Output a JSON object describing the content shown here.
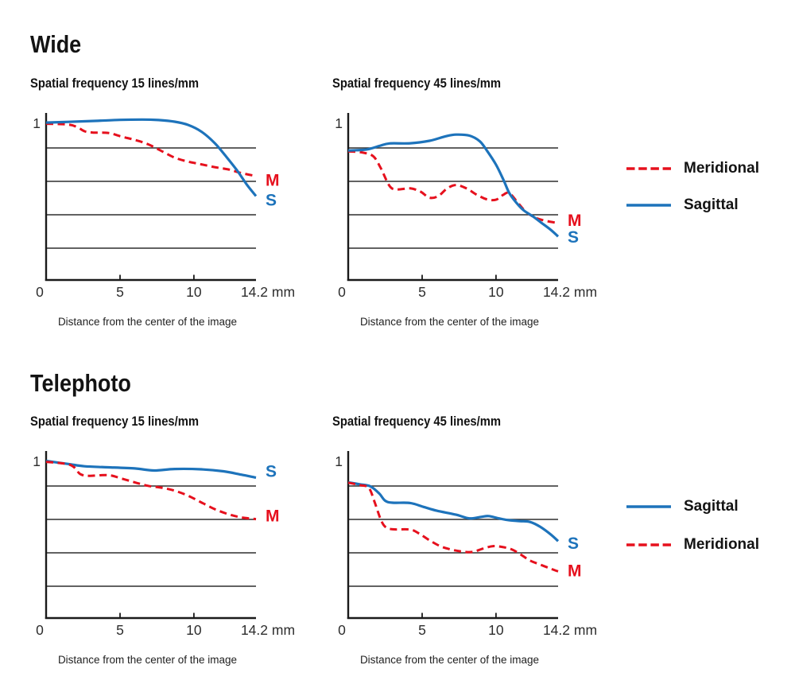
{
  "page_background": "#ffffff",
  "colors": {
    "sagittal_blue": "#1d73bb",
    "meridional_red": "#e6101d",
    "axis": "#1a1a1a",
    "gridline": "#2e2e2e",
    "tick_text": "#2d2d2d"
  },
  "sections": [
    {
      "title": "Wide",
      "legend": [
        {
          "label": "Meridional",
          "style": "dashed",
          "color": "#e6101d"
        },
        {
          "label": "Sagittal",
          "style": "solid",
          "color": "#1d73bb"
        }
      ]
    },
    {
      "title": "Telephoto",
      "legend": [
        {
          "label": "Sagittal",
          "style": "solid",
          "color": "#1d73bb"
        },
        {
          "label": "Meridional",
          "style": "dashed",
          "color": "#e6101d"
        }
      ]
    }
  ],
  "chart_data": [
    {
      "id": "wide-15",
      "type": "line",
      "title": "Spatial frequency 15 lines/mm",
      "xlabel": "Distance from the center of the image",
      "xlim": [
        0,
        14.2
      ],
      "ylim": [
        0,
        1
      ],
      "y_top_label": "1",
      "gridlines_y": [
        0.8,
        0.6,
        0.4,
        0.2
      ],
      "x_ticks": [
        {
          "value": 0,
          "label": "0",
          "mark": false
        },
        {
          "value": 5,
          "label": "5",
          "mark": true
        },
        {
          "value": 10,
          "label": "10",
          "mark": true
        },
        {
          "value": 14.2,
          "label": "14.2 mm",
          "mark": false
        }
      ],
      "series": [
        {
          "name": "Meridional",
          "end_label": "M",
          "style": "dashed",
          "color": "#e6101d",
          "end_label_at": 0.61,
          "points": [
            [
              0,
              0.945
            ],
            [
              1.5,
              0.94
            ],
            [
              2.1,
              0.925
            ],
            [
              2.6,
              0.9
            ],
            [
              3.2,
              0.892
            ],
            [
              4.2,
              0.89
            ],
            [
              5.1,
              0.868
            ],
            [
              6,
              0.848
            ],
            [
              6.9,
              0.822
            ],
            [
              7.8,
              0.782
            ],
            [
              8.7,
              0.742
            ],
            [
              9.6,
              0.718
            ],
            [
              10.5,
              0.702
            ],
            [
              11.4,
              0.685
            ],
            [
              12.3,
              0.672
            ],
            [
              13.2,
              0.65
            ],
            [
              14.2,
              0.632
            ]
          ]
        },
        {
          "name": "Sagittal",
          "end_label": "S",
          "style": "solid",
          "color": "#1d73bb",
          "end_label_at": 0.49,
          "points": [
            [
              0,
              0.952
            ],
            [
              1.5,
              0.956
            ],
            [
              3.3,
              0.962
            ],
            [
              5,
              0.968
            ],
            [
              6.5,
              0.97
            ],
            [
              7.6,
              0.967
            ],
            [
              8.7,
              0.957
            ],
            [
              9.6,
              0.938
            ],
            [
              10.5,
              0.898
            ],
            [
              11.4,
              0.83
            ],
            [
              12.1,
              0.757
            ],
            [
              12.9,
              0.668
            ],
            [
              13.6,
              0.578
            ],
            [
              14.2,
              0.512
            ]
          ]
        }
      ]
    },
    {
      "id": "wide-45",
      "type": "line",
      "title": "Spatial frequency 45 lines/mm",
      "xlabel": "Distance from the center of the image",
      "xlim": [
        0,
        14.2
      ],
      "ylim": [
        0,
        1
      ],
      "y_top_label": "1",
      "gridlines_y": [
        0.8,
        0.6,
        0.4,
        0.2
      ],
      "x_ticks": [
        {
          "value": 0,
          "label": "0",
          "mark": false
        },
        {
          "value": 5,
          "label": "5",
          "mark": true
        },
        {
          "value": 10,
          "label": "10",
          "mark": true
        },
        {
          "value": 14.2,
          "label": "14.2 mm",
          "mark": false
        }
      ],
      "series": [
        {
          "name": "Meridional",
          "end_label": "M",
          "style": "dashed",
          "color": "#e6101d",
          "end_label_at": 0.37,
          "points": [
            [
              0,
              0.78
            ],
            [
              1,
              0.772
            ],
            [
              1.7,
              0.75
            ],
            [
              2.2,
              0.68
            ],
            [
              2.8,
              0.572
            ],
            [
              3.3,
              0.552
            ],
            [
              4.2,
              0.558
            ],
            [
              4.9,
              0.538
            ],
            [
              5.5,
              0.502
            ],
            [
              6.1,
              0.512
            ],
            [
              6.7,
              0.558
            ],
            [
              7.3,
              0.578
            ],
            [
              8,
              0.558
            ],
            [
              8.7,
              0.52
            ],
            [
              9.4,
              0.492
            ],
            [
              10,
              0.49
            ],
            [
              10.5,
              0.52
            ],
            [
              10.9,
              0.53
            ],
            [
              11.5,
              0.47
            ],
            [
              12,
              0.42
            ],
            [
              12.6,
              0.385
            ],
            [
              13.3,
              0.365
            ],
            [
              14.2,
              0.35
            ]
          ]
        },
        {
          "name": "Sagittal",
          "end_label": "S",
          "style": "solid",
          "color": "#1d73bb",
          "end_label_at": 0.27,
          "points": [
            [
              0,
              0.785
            ],
            [
              1.2,
              0.79
            ],
            [
              2.1,
              0.812
            ],
            [
              2.8,
              0.827
            ],
            [
              4.2,
              0.828
            ],
            [
              5.5,
              0.843
            ],
            [
              6.6,
              0.87
            ],
            [
              7.3,
              0.88
            ],
            [
              8.2,
              0.874
            ],
            [
              8.9,
              0.84
            ],
            [
              9.4,
              0.782
            ],
            [
              10,
              0.7
            ],
            [
              10.5,
              0.61
            ],
            [
              10.9,
              0.53
            ],
            [
              11.4,
              0.47
            ],
            [
              11.9,
              0.425
            ],
            [
              12.5,
              0.39
            ],
            [
              13.1,
              0.35
            ],
            [
              13.7,
              0.31
            ],
            [
              14.2,
              0.27
            ]
          ]
        }
      ]
    },
    {
      "id": "telephoto-15",
      "type": "line",
      "title": "Spatial frequency 15 lines/mm",
      "xlabel": "Distance from the center of the image",
      "xlim": [
        0,
        14.2
      ],
      "ylim": [
        0,
        1
      ],
      "y_top_label": "1",
      "gridlines_y": [
        0.8,
        0.6,
        0.4,
        0.2
      ],
      "x_ticks": [
        {
          "value": 0,
          "label": "0",
          "mark": false
        },
        {
          "value": 5,
          "label": "5",
          "mark": true
        },
        {
          "value": 10,
          "label": "10",
          "mark": true
        },
        {
          "value": 14.2,
          "label": "14.2 mm",
          "mark": false
        }
      ],
      "series": [
        {
          "name": "Sagittal",
          "end_label": "S",
          "style": "solid",
          "color": "#1d73bb",
          "end_label_at": 0.89,
          "points": [
            [
              0,
              0.95
            ],
            [
              1.5,
              0.932
            ],
            [
              2.6,
              0.918
            ],
            [
              4.2,
              0.912
            ],
            [
              6,
              0.905
            ],
            [
              7.3,
              0.893
            ],
            [
              8.7,
              0.902
            ],
            [
              10.5,
              0.9
            ],
            [
              12,
              0.888
            ],
            [
              13.2,
              0.868
            ],
            [
              14.2,
              0.85
            ]
          ]
        },
        {
          "name": "Meridional",
          "end_label": "M",
          "style": "dashed",
          "color": "#e6101d",
          "end_label_at": 0.625,
          "points": [
            [
              0,
              0.945
            ],
            [
              1.4,
              0.932
            ],
            [
              1.9,
              0.912
            ],
            [
              2.3,
              0.872
            ],
            [
              2.9,
              0.861
            ],
            [
              4.2,
              0.865
            ],
            [
              5.1,
              0.845
            ],
            [
              6,
              0.822
            ],
            [
              6.9,
              0.801
            ],
            [
              7.8,
              0.79
            ],
            [
              8.7,
              0.772
            ],
            [
              9.6,
              0.742
            ],
            [
              10.5,
              0.702
            ],
            [
              11.4,
              0.662
            ],
            [
              12.3,
              0.632
            ],
            [
              13.2,
              0.612
            ],
            [
              14.2,
              0.602
            ]
          ]
        }
      ]
    },
    {
      "id": "telephoto-45",
      "type": "line",
      "title": "Spatial frequency 45 lines/mm",
      "xlabel": "Distance from the center of the image",
      "xlim": [
        0,
        14.2
      ],
      "ylim": [
        0,
        1
      ],
      "y_top_label": "1",
      "gridlines_y": [
        0.8,
        0.6,
        0.4,
        0.2
      ],
      "x_ticks": [
        {
          "value": 0,
          "label": "0",
          "mark": false
        },
        {
          "value": 5,
          "label": "5",
          "mark": true
        },
        {
          "value": 10,
          "label": "10",
          "mark": true
        },
        {
          "value": 14.2,
          "label": "14.2 mm",
          "mark": false
        }
      ],
      "series": [
        {
          "name": "Sagittal",
          "end_label": "S",
          "style": "solid",
          "color": "#1d73bb",
          "end_label_at": 0.46,
          "points": [
            [
              0,
              0.822
            ],
            [
              0.8,
              0.81
            ],
            [
              1.5,
              0.798
            ],
            [
              2.1,
              0.755
            ],
            [
              2.5,
              0.712
            ],
            [
              3,
              0.7
            ],
            [
              4.2,
              0.698
            ],
            [
              5.1,
              0.675
            ],
            [
              6,
              0.652
            ],
            [
              7.3,
              0.628
            ],
            [
              8.2,
              0.606
            ],
            [
              9,
              0.615
            ],
            [
              9.5,
              0.62
            ],
            [
              10.2,
              0.606
            ],
            [
              10.8,
              0.596
            ],
            [
              11.6,
              0.59
            ],
            [
              12.3,
              0.585
            ],
            [
              13,
              0.555
            ],
            [
              13.7,
              0.51
            ],
            [
              14.2,
              0.47
            ]
          ]
        },
        {
          "name": "Meridional",
          "end_label": "M",
          "style": "dashed",
          "color": "#e6101d",
          "end_label_at": 0.295,
          "points": [
            [
              0,
              0.82
            ],
            [
              0.8,
              0.805
            ],
            [
              1.4,
              0.788
            ],
            [
              1.8,
              0.7
            ],
            [
              2.2,
              0.6
            ],
            [
              2.5,
              0.556
            ],
            [
              3,
              0.541
            ],
            [
              4.2,
              0.539
            ],
            [
              4.8,
              0.515
            ],
            [
              5.5,
              0.475
            ],
            [
              6.2,
              0.441
            ],
            [
              6.9,
              0.421
            ],
            [
              7.6,
              0.409
            ],
            [
              8.4,
              0.405
            ],
            [
              9.1,
              0.425
            ],
            [
              9.8,
              0.44
            ],
            [
              10.5,
              0.434
            ],
            [
              11.1,
              0.419
            ],
            [
              11.6,
              0.394
            ],
            [
              12.3,
              0.354
            ],
            [
              13,
              0.329
            ],
            [
              13.7,
              0.305
            ],
            [
              14.2,
              0.289
            ]
          ]
        }
      ]
    }
  ]
}
